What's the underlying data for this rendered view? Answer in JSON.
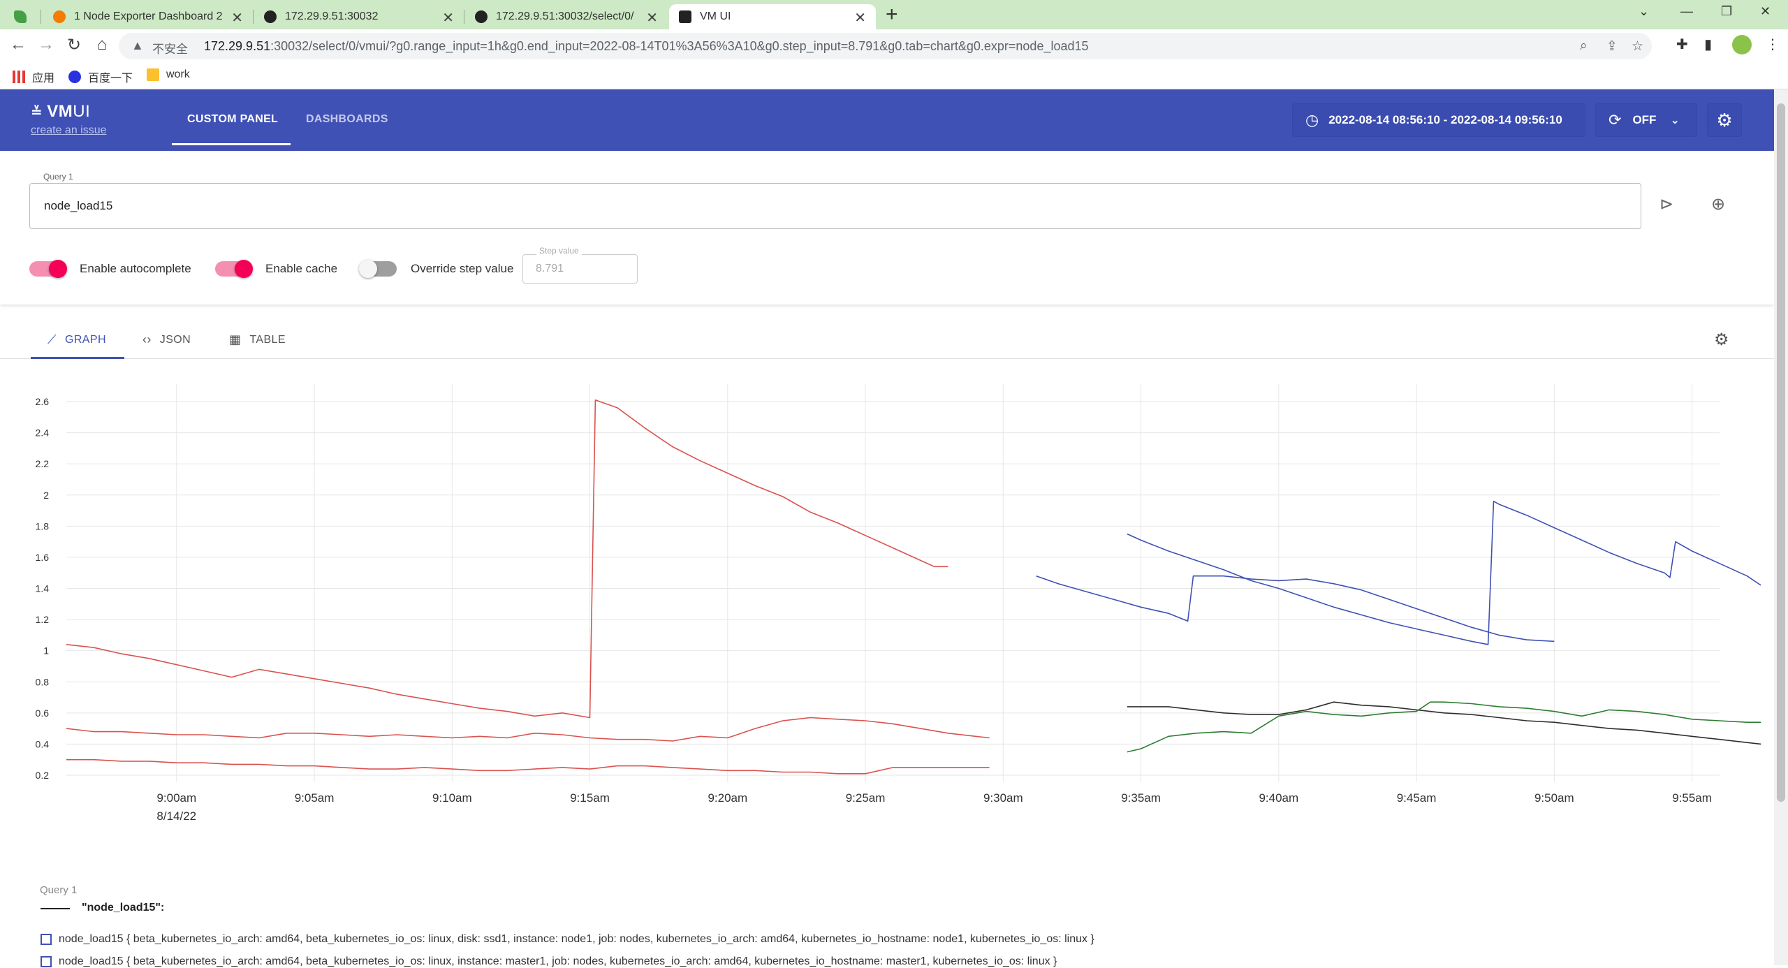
{
  "browser": {
    "tabs": [
      {
        "title": "1 Node Exporter Dashboard 2"
      },
      {
        "title": "172.29.9.51:30032"
      },
      {
        "title": "172.29.9.51:30032/select/0/"
      },
      {
        "title": "VM UI"
      }
    ],
    "insecure_label": "不安全",
    "url_host": "172.29.9.51",
    "url_rest": ":30032/select/0/vmui/?g0.range_input=1h&g0.end_input=2022-08-14T01%3A56%3A10&g0.step_input=8.791&g0.tab=chart&g0.expr=node_load15",
    "bookmarks": [
      "应用",
      "百度一下",
      "work"
    ]
  },
  "app": {
    "logo_bold": "VM",
    "logo_light": "UI",
    "create_issue": "create an issue",
    "nav_tabs": [
      "CUSTOM PANEL",
      "DASHBOARDS"
    ],
    "time_range": "2022-08-14 08:56:10 - 2022-08-14 09:56:10",
    "refresh_label": "OFF"
  },
  "query": {
    "label": "Query 1",
    "expr": "node_load15",
    "toggles": [
      {
        "label": "Enable autocomplete",
        "on": true
      },
      {
        "label": "Enable cache",
        "on": true
      },
      {
        "label": "Override step value",
        "on": false
      }
    ],
    "step_label": "Step value",
    "step_value": "8.791"
  },
  "view_tabs": [
    "GRAPH",
    "JSON",
    "TABLE"
  ],
  "chart_data": {
    "type": "line",
    "y_ticks": [
      "2.6",
      "2.4",
      "2.2",
      "2",
      "1.8",
      "1.6",
      "1.4",
      "1.2",
      "1",
      "0.8",
      "0.6",
      "0.4",
      "0.2"
    ],
    "ylim": [
      0.2,
      2.6
    ],
    "x_ticks": [
      "9:00am",
      "9:05am",
      "9:10am",
      "9:15am",
      "9:20am",
      "9:25am",
      "9:30am",
      "9:35am",
      "9:40am",
      "9:45am",
      "9:50am",
      "9:55am"
    ],
    "x_date_label": "8/14/22",
    "xlim_minutes_after_8_56": [
      0,
      60
    ],
    "grid": true,
    "series": [
      {
        "color": "#d9534f",
        "points": [
          [
            0,
            1.04
          ],
          [
            1,
            1.02
          ],
          [
            2,
            0.98
          ],
          [
            3,
            0.95
          ],
          [
            4,
            0.91
          ],
          [
            5,
            0.87
          ],
          [
            6,
            0.83
          ],
          [
            7,
            0.88
          ],
          [
            8,
            0.85
          ],
          [
            9,
            0.82
          ],
          [
            10,
            0.79
          ],
          [
            11,
            0.76
          ],
          [
            12,
            0.72
          ],
          [
            13,
            0.69
          ],
          [
            14,
            0.66
          ],
          [
            15,
            0.63
          ],
          [
            16,
            0.61
          ],
          [
            17,
            0.58
          ],
          [
            18,
            0.6
          ],
          [
            19,
            0.57
          ],
          [
            19.2,
            2.61
          ],
          [
            20,
            2.56
          ],
          [
            21,
            2.43
          ],
          [
            22,
            2.31
          ],
          [
            23,
            2.22
          ],
          [
            24,
            2.14
          ],
          [
            25,
            2.06
          ],
          [
            26,
            1.99
          ],
          [
            27,
            1.89
          ],
          [
            28,
            1.82
          ],
          [
            29,
            1.74
          ],
          [
            30,
            1.66
          ],
          [
            31,
            1.58
          ],
          [
            31.5,
            1.54
          ],
          [
            32,
            1.54
          ]
        ]
      },
      {
        "color": "#d9534f",
        "points": [
          [
            0,
            0.5
          ],
          [
            1,
            0.48
          ],
          [
            2,
            0.48
          ],
          [
            3,
            0.47
          ],
          [
            4,
            0.46
          ],
          [
            5,
            0.46
          ],
          [
            6,
            0.45
          ],
          [
            7,
            0.44
          ],
          [
            8,
            0.47
          ],
          [
            9,
            0.47
          ],
          [
            10,
            0.46
          ],
          [
            11,
            0.45
          ],
          [
            12,
            0.46
          ],
          [
            13,
            0.45
          ],
          [
            14,
            0.44
          ],
          [
            15,
            0.45
          ],
          [
            16,
            0.44
          ],
          [
            17,
            0.47
          ],
          [
            18,
            0.46
          ],
          [
            19,
            0.44
          ],
          [
            20,
            0.43
          ],
          [
            21,
            0.43
          ],
          [
            22,
            0.42
          ],
          [
            23,
            0.45
          ],
          [
            24,
            0.44
          ],
          [
            25,
            0.5
          ],
          [
            26,
            0.55
          ],
          [
            27,
            0.57
          ],
          [
            28,
            0.56
          ],
          [
            29,
            0.55
          ],
          [
            30,
            0.53
          ],
          [
            31,
            0.5
          ],
          [
            32,
            0.47
          ],
          [
            33,
            0.45
          ],
          [
            33.5,
            0.44
          ]
        ]
      },
      {
        "color": "#d9534f",
        "points": [
          [
            0,
            0.3
          ],
          [
            1,
            0.3
          ],
          [
            2,
            0.29
          ],
          [
            3,
            0.29
          ],
          [
            4,
            0.28
          ],
          [
            5,
            0.28
          ],
          [
            6,
            0.27
          ],
          [
            7,
            0.27
          ],
          [
            8,
            0.26
          ],
          [
            9,
            0.26
          ],
          [
            10,
            0.25
          ],
          [
            11,
            0.24
          ],
          [
            12,
            0.24
          ],
          [
            13,
            0.25
          ],
          [
            14,
            0.24
          ],
          [
            15,
            0.23
          ],
          [
            16,
            0.23
          ],
          [
            17,
            0.24
          ],
          [
            18,
            0.25
          ],
          [
            19,
            0.24
          ],
          [
            20,
            0.26
          ],
          [
            21,
            0.26
          ],
          [
            22,
            0.25
          ],
          [
            23,
            0.24
          ],
          [
            24,
            0.23
          ],
          [
            25,
            0.23
          ],
          [
            26,
            0.22
          ],
          [
            27,
            0.22
          ],
          [
            28,
            0.21
          ],
          [
            29,
            0.21
          ],
          [
            30,
            0.25
          ],
          [
            31,
            0.25
          ],
          [
            32,
            0.25
          ],
          [
            33.5,
            0.25
          ]
        ]
      },
      {
        "color": "#3f51b5",
        "points": [
          [
            35.2,
            1.48
          ],
          [
            36,
            1.43
          ],
          [
            37,
            1.38
          ],
          [
            38,
            1.33
          ],
          [
            39,
            1.28
          ],
          [
            40,
            1.24
          ],
          [
            40.7,
            1.19
          ],
          [
            40.9,
            1.48
          ],
          [
            41.5,
            1.48
          ],
          [
            42,
            1.48
          ],
          [
            43,
            1.46
          ],
          [
            44,
            1.45
          ],
          [
            45,
            1.46
          ],
          [
            46,
            1.43
          ],
          [
            47,
            1.39
          ],
          [
            48,
            1.33
          ],
          [
            49,
            1.27
          ],
          [
            50,
            1.21
          ],
          [
            51,
            1.15
          ],
          [
            52,
            1.1
          ],
          [
            53,
            1.07
          ],
          [
            54,
            1.06
          ]
        ]
      },
      {
        "color": "#3f51b5",
        "points": [
          [
            38.5,
            1.75
          ],
          [
            39,
            1.71
          ],
          [
            40,
            1.64
          ],
          [
            41,
            1.58
          ],
          [
            42,
            1.52
          ],
          [
            43,
            1.45
          ],
          [
            44,
            1.4
          ],
          [
            45,
            1.34
          ],
          [
            46,
            1.28
          ],
          [
            47,
            1.23
          ],
          [
            48,
            1.18
          ],
          [
            49,
            1.14
          ],
          [
            50,
            1.1
          ],
          [
            51,
            1.06
          ],
          [
            51.6,
            1.04
          ],
          [
            51.8,
            1.96
          ],
          [
            52,
            1.94
          ],
          [
            53,
            1.87
          ],
          [
            54,
            1.79
          ],
          [
            55,
            1.71
          ],
          [
            56,
            1.63
          ],
          [
            57,
            1.56
          ],
          [
            58,
            1.5
          ],
          [
            58.2,
            1.47
          ],
          [
            58.4,
            1.7
          ],
          [
            59,
            1.64
          ],
          [
            60,
            1.56
          ],
          [
            61,
            1.48
          ],
          [
            61.5,
            1.42
          ]
        ]
      },
      {
        "color": "#2e2e2e",
        "points": [
          [
            38.5,
            0.64
          ],
          [
            40,
            0.64
          ],
          [
            41,
            0.62
          ],
          [
            42,
            0.6
          ],
          [
            43,
            0.59
          ],
          [
            44,
            0.59
          ],
          [
            45,
            0.62
          ],
          [
            46,
            0.67
          ],
          [
            47,
            0.65
          ],
          [
            48,
            0.64
          ],
          [
            49,
            0.62
          ],
          [
            50,
            0.6
          ],
          [
            51,
            0.59
          ],
          [
            52,
            0.57
          ],
          [
            53,
            0.55
          ],
          [
            54,
            0.54
          ],
          [
            55,
            0.52
          ],
          [
            56,
            0.5
          ],
          [
            57,
            0.49
          ],
          [
            58,
            0.47
          ],
          [
            59,
            0.45
          ],
          [
            60,
            0.43
          ],
          [
            61,
            0.41
          ],
          [
            61.5,
            0.4
          ]
        ]
      },
      {
        "color": "#2e7d32",
        "points": [
          [
            38.5,
            0.35
          ],
          [
            39,
            0.37
          ],
          [
            40,
            0.45
          ],
          [
            41,
            0.47
          ],
          [
            42,
            0.48
          ],
          [
            43,
            0.47
          ],
          [
            44,
            0.58
          ],
          [
            45,
            0.61
          ],
          [
            46,
            0.59
          ],
          [
            47,
            0.58
          ],
          [
            48,
            0.6
          ],
          [
            49,
            0.61
          ],
          [
            49.5,
            0.67
          ],
          [
            50,
            0.67
          ],
          [
            51,
            0.66
          ],
          [
            52,
            0.64
          ],
          [
            53,
            0.63
          ],
          [
            54,
            0.61
          ],
          [
            55,
            0.58
          ],
          [
            56,
            0.62
          ],
          [
            57,
            0.61
          ],
          [
            58,
            0.59
          ],
          [
            59,
            0.56
          ],
          [
            60,
            0.55
          ],
          [
            61,
            0.54
          ],
          [
            61.5,
            0.54
          ]
        ]
      }
    ]
  },
  "legend": {
    "title": "Query 1",
    "name": "\"node_load15\":",
    "rows": [
      "node_load15 { beta_kubernetes_io_arch: amd64, beta_kubernetes_io_os: linux, disk: ssd1, instance: node1, job: nodes, kubernetes_io_arch: amd64, kubernetes_io_hostname: node1, kubernetes_io_os: linux }",
      "node_load15 { beta_kubernetes_io_arch: amd64, beta_kubernetes_io_os: linux, instance: master1, job: nodes, kubernetes_io_arch: amd64, kubernetes_io_hostname: master1, kubernetes_io_os: linux }"
    ]
  }
}
